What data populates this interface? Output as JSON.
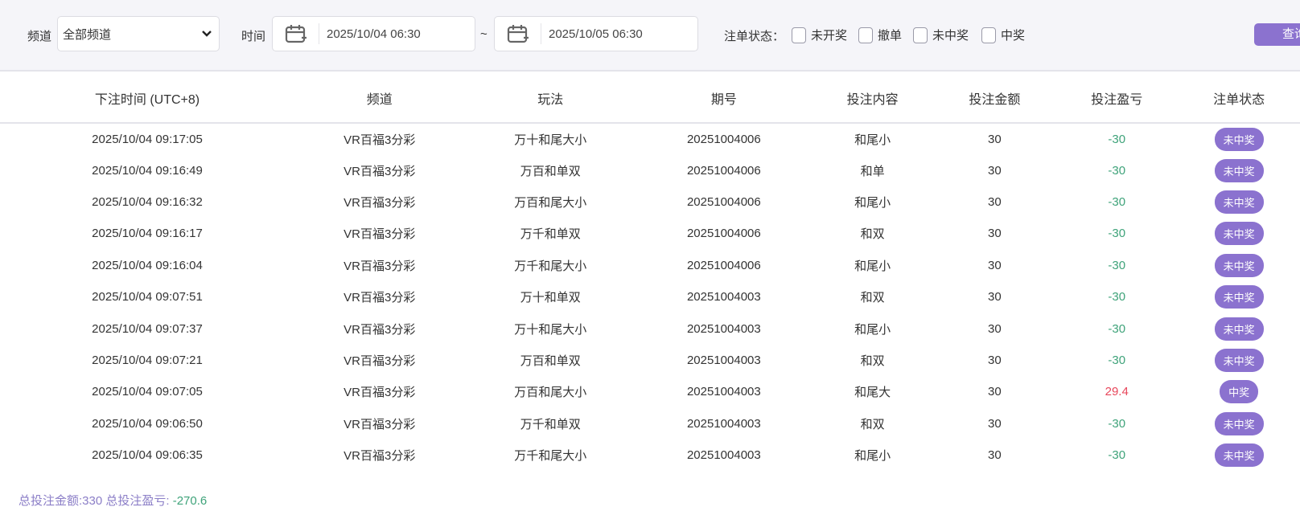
{
  "filter": {
    "channel_label": "频道",
    "channel_value": "全部频道",
    "time_label": "时间",
    "start": "2025/10/04 06:30",
    "sep": "~",
    "end": "2025/10/05 06:30",
    "status_label": "注单状态：",
    "statuses": [
      "未开奖",
      "撤单",
      "未中奖",
      "中奖"
    ],
    "query": "查询"
  },
  "columns": [
    "下注时间 (UTC+8)",
    "频道",
    "玩法",
    "期号",
    "投注内容",
    "投注金额",
    "投注盈亏",
    "注单状态"
  ],
  "rows": [
    [
      "2025/10/04 09:17:05",
      "VR百福3分彩",
      "万十和尾大小",
      "20251004006",
      "和尾小",
      "30",
      "-30",
      "未中奖"
    ],
    [
      "2025/10/04 09:16:49",
      "VR百福3分彩",
      "万百和单双",
      "20251004006",
      "和单",
      "30",
      "-30",
      "未中奖"
    ],
    [
      "2025/10/04 09:16:32",
      "VR百福3分彩",
      "万百和尾大小",
      "20251004006",
      "和尾小",
      "30",
      "-30",
      "未中奖"
    ],
    [
      "2025/10/04 09:16:17",
      "VR百福3分彩",
      "万千和单双",
      "20251004006",
      "和双",
      "30",
      "-30",
      "未中奖"
    ],
    [
      "2025/10/04 09:16:04",
      "VR百福3分彩",
      "万千和尾大小",
      "20251004006",
      "和尾小",
      "30",
      "-30",
      "未中奖"
    ],
    [
      "2025/10/04 09:07:51",
      "VR百福3分彩",
      "万十和单双",
      "20251004003",
      "和双",
      "30",
      "-30",
      "未中奖"
    ],
    [
      "2025/10/04 09:07:37",
      "VR百福3分彩",
      "万十和尾大小",
      "20251004003",
      "和尾小",
      "30",
      "-30",
      "未中奖"
    ],
    [
      "2025/10/04 09:07:21",
      "VR百福3分彩",
      "万百和单双",
      "20251004003",
      "和双",
      "30",
      "-30",
      "未中奖"
    ],
    [
      "2025/10/04 09:07:05",
      "VR百福3分彩",
      "万百和尾大小",
      "20251004003",
      "和尾大",
      "30",
      "29.4",
      "中奖"
    ],
    [
      "2025/10/04 09:06:50",
      "VR百福3分彩",
      "万千和单双",
      "20251004003",
      "和双",
      "30",
      "-30",
      "未中奖"
    ],
    [
      "2025/10/04 09:06:35",
      "VR百福3分彩",
      "万千和尾大小",
      "20251004003",
      "和尾小",
      "30",
      "-30",
      "未中奖"
    ]
  ],
  "footer": {
    "total_label": "总投注金额:330 总投注盈亏: ",
    "total_pl": "-270.6"
  },
  "colors": {
    "accent": "#8b72cf",
    "loss": "#3fa37a",
    "win": "#e8475b"
  }
}
